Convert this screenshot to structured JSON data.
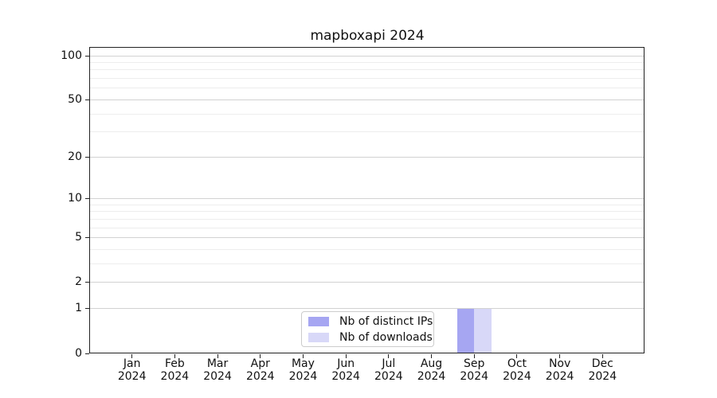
{
  "chart_data": {
    "type": "bar",
    "title": "mapboxapi 2024",
    "x_tick_labels": [
      {
        "line1": "Jan",
        "line2": "2024"
      },
      {
        "line1": "Feb",
        "line2": "2024"
      },
      {
        "line1": "Mar",
        "line2": "2024"
      },
      {
        "line1": "Apr",
        "line2": "2024"
      },
      {
        "line1": "May",
        "line2": "2024"
      },
      {
        "line1": "Jun",
        "line2": "2024"
      },
      {
        "line1": "Jul",
        "line2": "2024"
      },
      {
        "line1": "Aug",
        "line2": "2024"
      },
      {
        "line1": "Sep",
        "line2": "2024"
      },
      {
        "line1": "Oct",
        "line2": "2024"
      },
      {
        "line1": "Nov",
        "line2": "2024"
      },
      {
        "line1": "Dec",
        "line2": "2024"
      }
    ],
    "y_axis": {
      "scale": "log1p",
      "ticks": [
        0,
        1,
        2,
        5,
        10,
        20,
        50,
        100
      ],
      "minor_ticks": [
        3,
        4,
        6,
        7,
        8,
        9,
        30,
        40,
        60,
        70,
        80,
        90
      ],
      "ylim": [
        0,
        114
      ]
    },
    "grid": "horizontal",
    "series": [
      {
        "name": "Nb of distinct IPs",
        "color": "#a6a6f2",
        "values": [
          0,
          0,
          0,
          0,
          0,
          0,
          0,
          0,
          1,
          0,
          0,
          0
        ]
      },
      {
        "name": "Nb of downloads",
        "color": "#d8d8f8",
        "values": [
          0,
          0,
          0,
          0,
          0,
          0,
          0,
          0,
          1,
          0,
          0,
          0
        ]
      }
    ],
    "legend": {
      "position": "bottom-center",
      "entries": [
        "Nb of distinct IPs",
        "Nb of downloads"
      ]
    }
  }
}
